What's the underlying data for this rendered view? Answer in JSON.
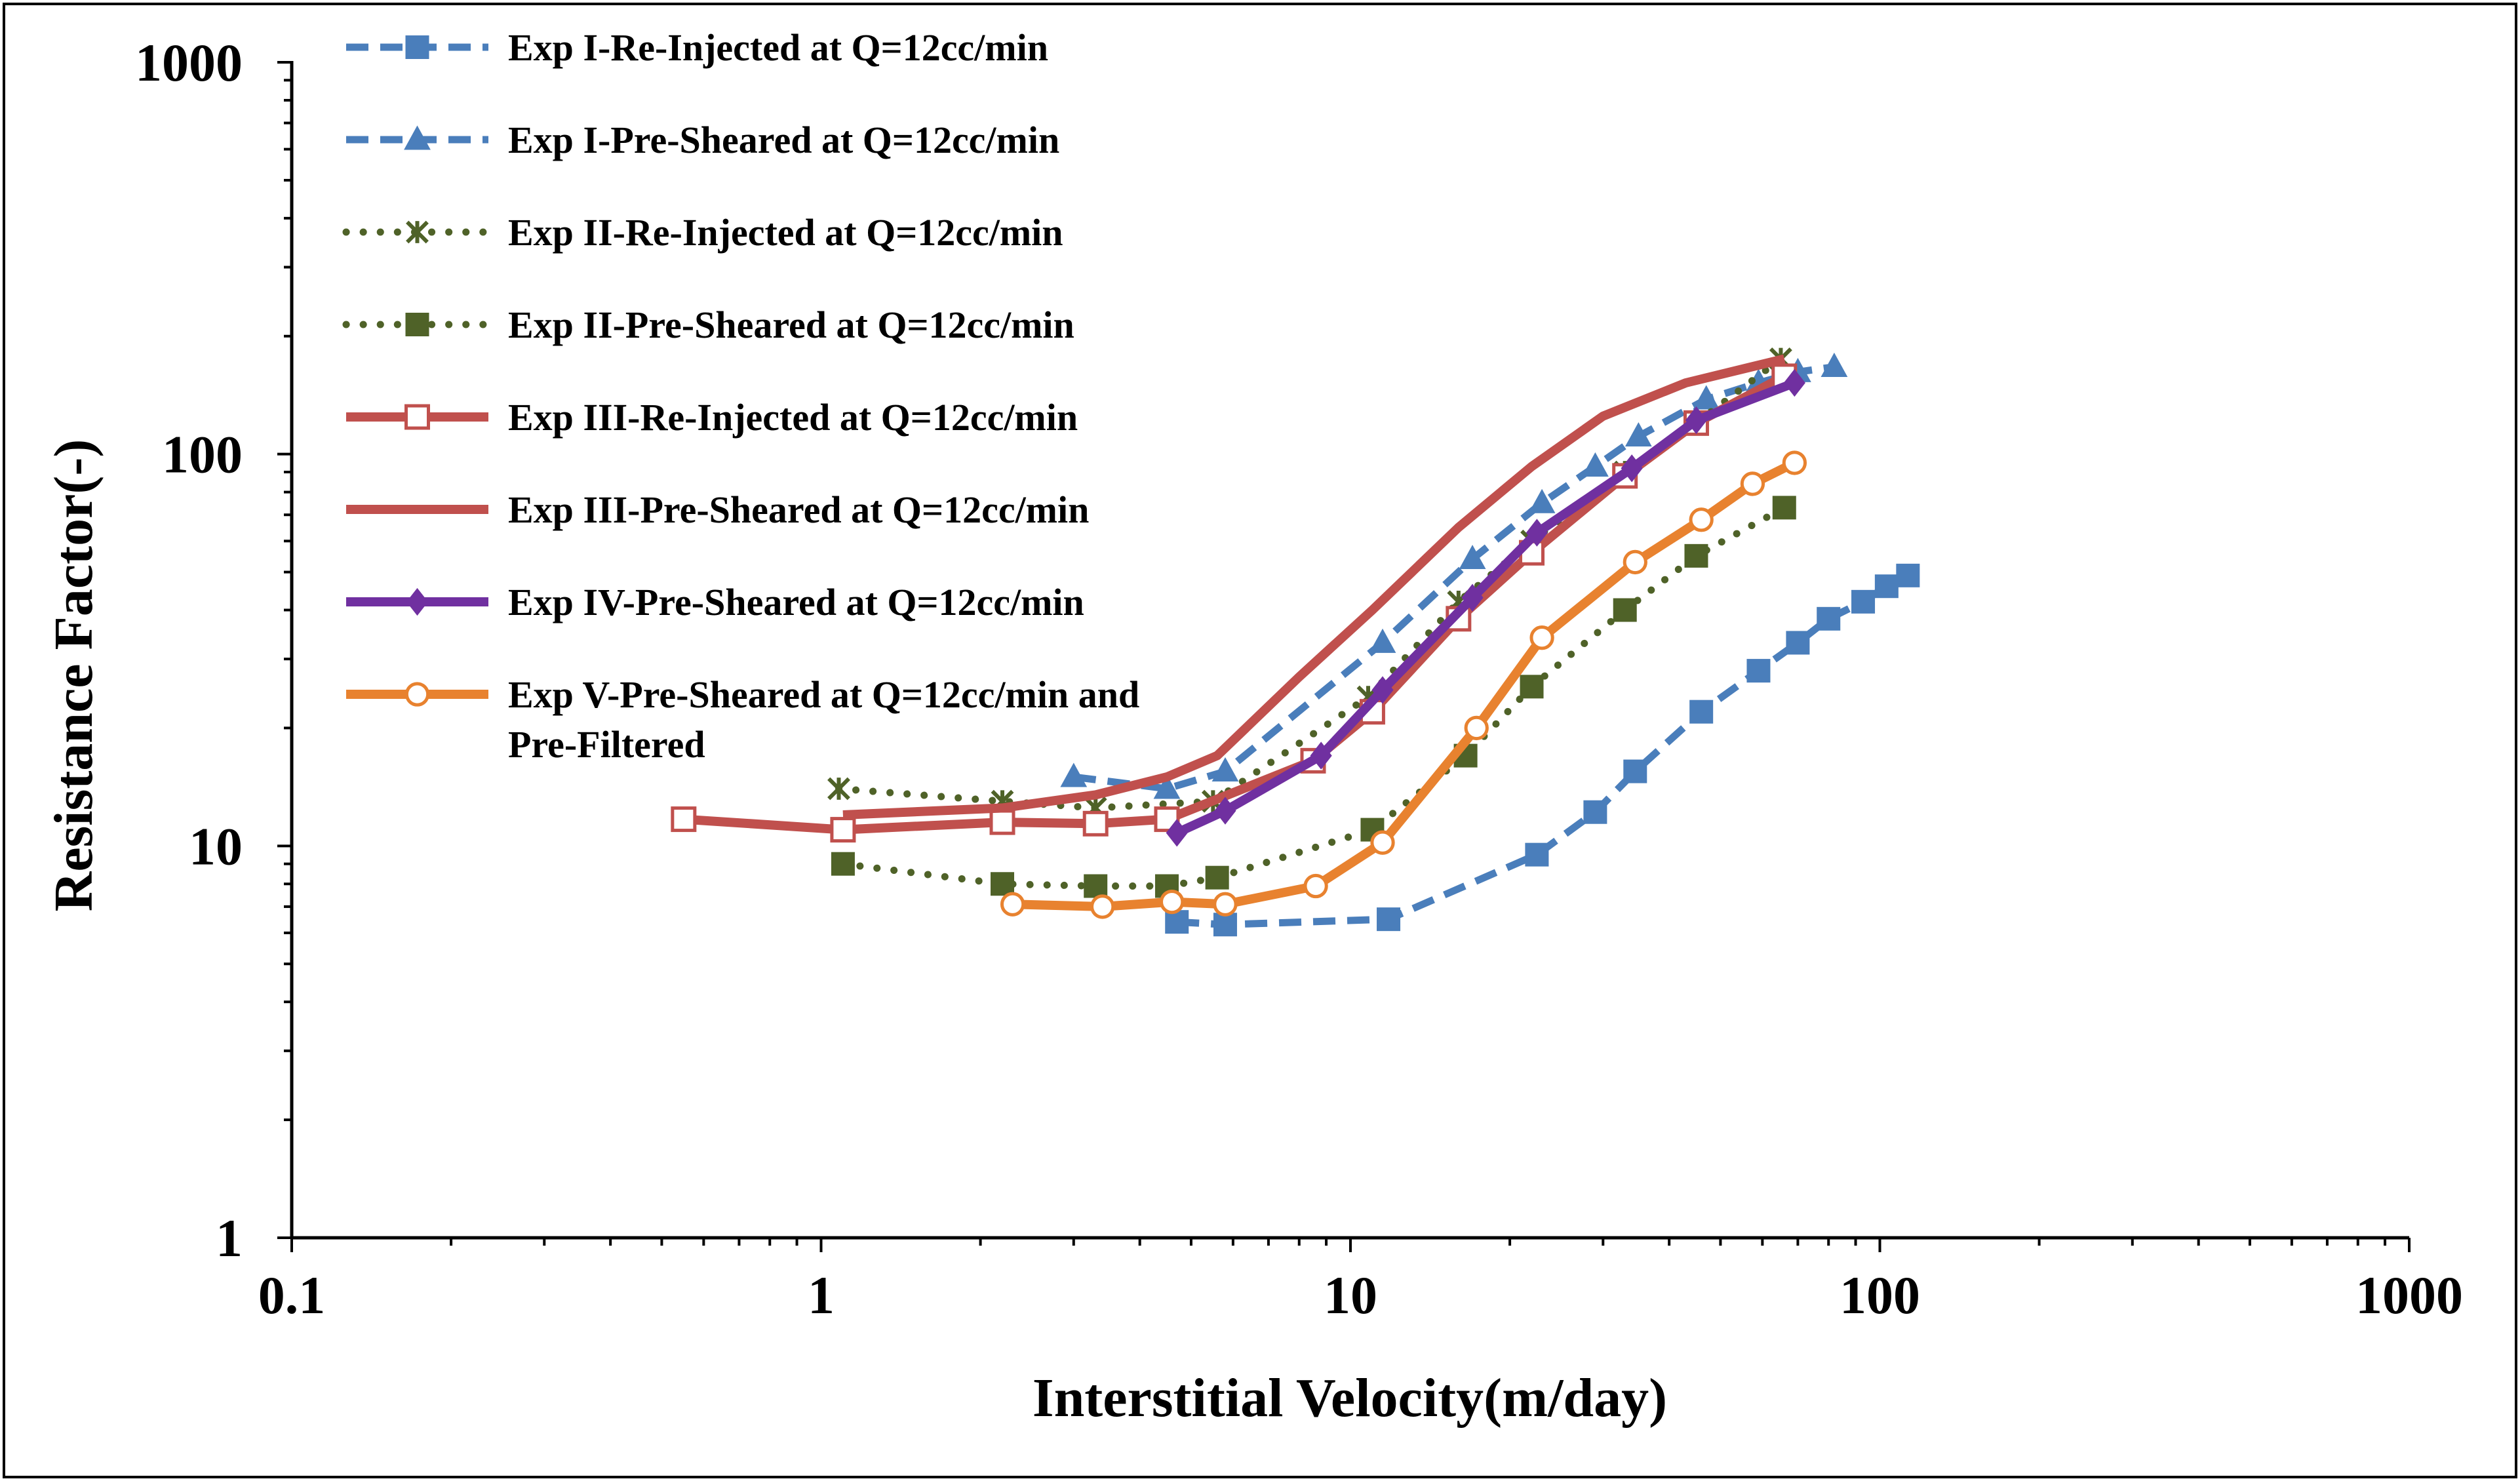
{
  "chart_data": {
    "type": "line",
    "title": "",
    "xlabel": "Interstitial Velocity(m/day)",
    "ylabel": "Resistance Factor(-)",
    "xscale": "log",
    "yscale": "log",
    "xlim": [
      0.1,
      1000
    ],
    "ylim": [
      1,
      1000
    ],
    "grid": false,
    "legend_position": "top-left",
    "x_tick_labels": [
      "0.1",
      "1",
      "10",
      "100",
      "1000"
    ],
    "y_tick_labels": [
      "1",
      "10",
      "100",
      "1000"
    ],
    "series": [
      {
        "name": "Exp I-Re-Injected at Q=12cc/min",
        "color": "#4a7ebb",
        "dash": "dash",
        "marker": "square",
        "marker_fill": "filled",
        "x": [
          4.7,
          5.8,
          11.8,
          22.5,
          29,
          34.5,
          46,
          59,
          70,
          80,
          93,
          103,
          113
        ],
        "y": [
          6.4,
          6.3,
          6.5,
          9.5,
          12.2,
          15.5,
          22,
          28,
          33,
          38,
          42,
          46,
          49
        ]
      },
      {
        "name": "Exp I-Pre-Sheared at Q=12cc/min",
        "color": "#4a7ebb",
        "dash": "dash",
        "marker": "triangle",
        "marker_fill": "filled",
        "x": [
          3.0,
          4.5,
          5.8,
          11.5,
          17,
          23,
          29,
          35,
          47,
          59,
          70,
          82
        ],
        "y": [
          15,
          14,
          15.5,
          33,
          54,
          75,
          93,
          111,
          138,
          152,
          162,
          167
        ]
      },
      {
        "name": "Exp II-Re-Injected at Q=12cc/min",
        "color": "#4f6228",
        "dash": "dot",
        "marker": "star",
        "marker_fill": "filled",
        "x": [
          1.08,
          2.2,
          3.3,
          5.5,
          10.8,
          16,
          22,
          33,
          45,
          65
        ],
        "y": [
          14,
          13,
          12.5,
          13,
          24,
          42,
          60,
          90,
          120,
          175
        ]
      },
      {
        "name": "Exp II-Pre-Sheared at Q=12cc/min",
        "color": "#4f6228",
        "dash": "dot",
        "marker": "square",
        "marker_fill": "filled",
        "x": [
          1.1,
          2.2,
          3.3,
          4.5,
          5.6,
          11.0,
          16.5,
          22,
          33,
          45,
          66
        ],
        "y": [
          9.0,
          8.0,
          7.9,
          7.9,
          8.3,
          11.0,
          17,
          25.5,
          40,
          55,
          73
        ]
      },
      {
        "name": "Exp III-Re-Injected at Q=12cc/min",
        "color": "#c0504d",
        "dash": "solid",
        "marker": "square",
        "marker_fill": "open",
        "x": [
          0.55,
          1.1,
          2.2,
          3.3,
          4.5,
          8.5,
          11,
          16,
          22,
          33,
          45,
          66
        ],
        "y": [
          11.7,
          11,
          11.5,
          11.4,
          11.7,
          16.5,
          22,
          38,
          56,
          88,
          120,
          158
        ]
      },
      {
        "name": "Exp III-Pre-Sheared at Q=12cc/min",
        "color": "#c0504d",
        "dash": "solid",
        "marker": "none",
        "marker_fill": "none",
        "x": [
          1.1,
          2.2,
          3.3,
          4.5,
          5.6,
          8.0,
          11,
          16,
          22,
          30,
          43,
          66
        ],
        "y": [
          12,
          12.5,
          13.5,
          15,
          17,
          27,
          40,
          65,
          93,
          125,
          152,
          175
        ]
      },
      {
        "name": "Exp IV-Pre-Sheared at Q=12cc/min",
        "color": "#7030a0",
        "dash": "solid",
        "marker": "diamond",
        "marker_fill": "filled",
        "x": [
          4.7,
          5.8,
          8.8,
          11.5,
          17,
          22.5,
          34,
          45,
          69
        ],
        "y": [
          10.8,
          12.3,
          17,
          25,
          43,
          63,
          92,
          122,
          152
        ]
      },
      {
        "name": "Exp V-Pre-Sheared at Q=12cc/min and Pre-Filtered",
        "color": "#e8822f",
        "dash": "solid",
        "marker": "circle",
        "marker_fill": "open",
        "x": [
          2.3,
          3.4,
          4.6,
          5.8,
          8.6,
          11.5,
          17.3,
          23,
          34.5,
          46,
          57.5,
          69
        ],
        "y": [
          7.1,
          7.0,
          7.2,
          7.1,
          7.9,
          10.2,
          20,
          34,
          53,
          68,
          84,
          95
        ]
      }
    ],
    "legend_entries": [
      {
        "lines": [
          "Exp I-Re-Injected at Q=12cc/min"
        ]
      },
      {
        "lines": [
          "Exp I-Pre-Sheared at Q=12cc/min"
        ]
      },
      {
        "lines": [
          "Exp II-Re-Injected at Q=12cc/min"
        ]
      },
      {
        "lines": [
          "Exp II-Pre-Sheared at Q=12cc/min"
        ]
      },
      {
        "lines": [
          "Exp III-Re-Injected at Q=12cc/min"
        ]
      },
      {
        "lines": [
          "Exp III-Pre-Sheared at Q=12cc/min"
        ]
      },
      {
        "lines": [
          "Exp IV-Pre-Sheared at Q=12cc/min"
        ]
      },
      {
        "lines": [
          "Exp V-Pre-Sheared at Q=12cc/min and",
          "Pre-Filtered"
        ]
      }
    ]
  }
}
